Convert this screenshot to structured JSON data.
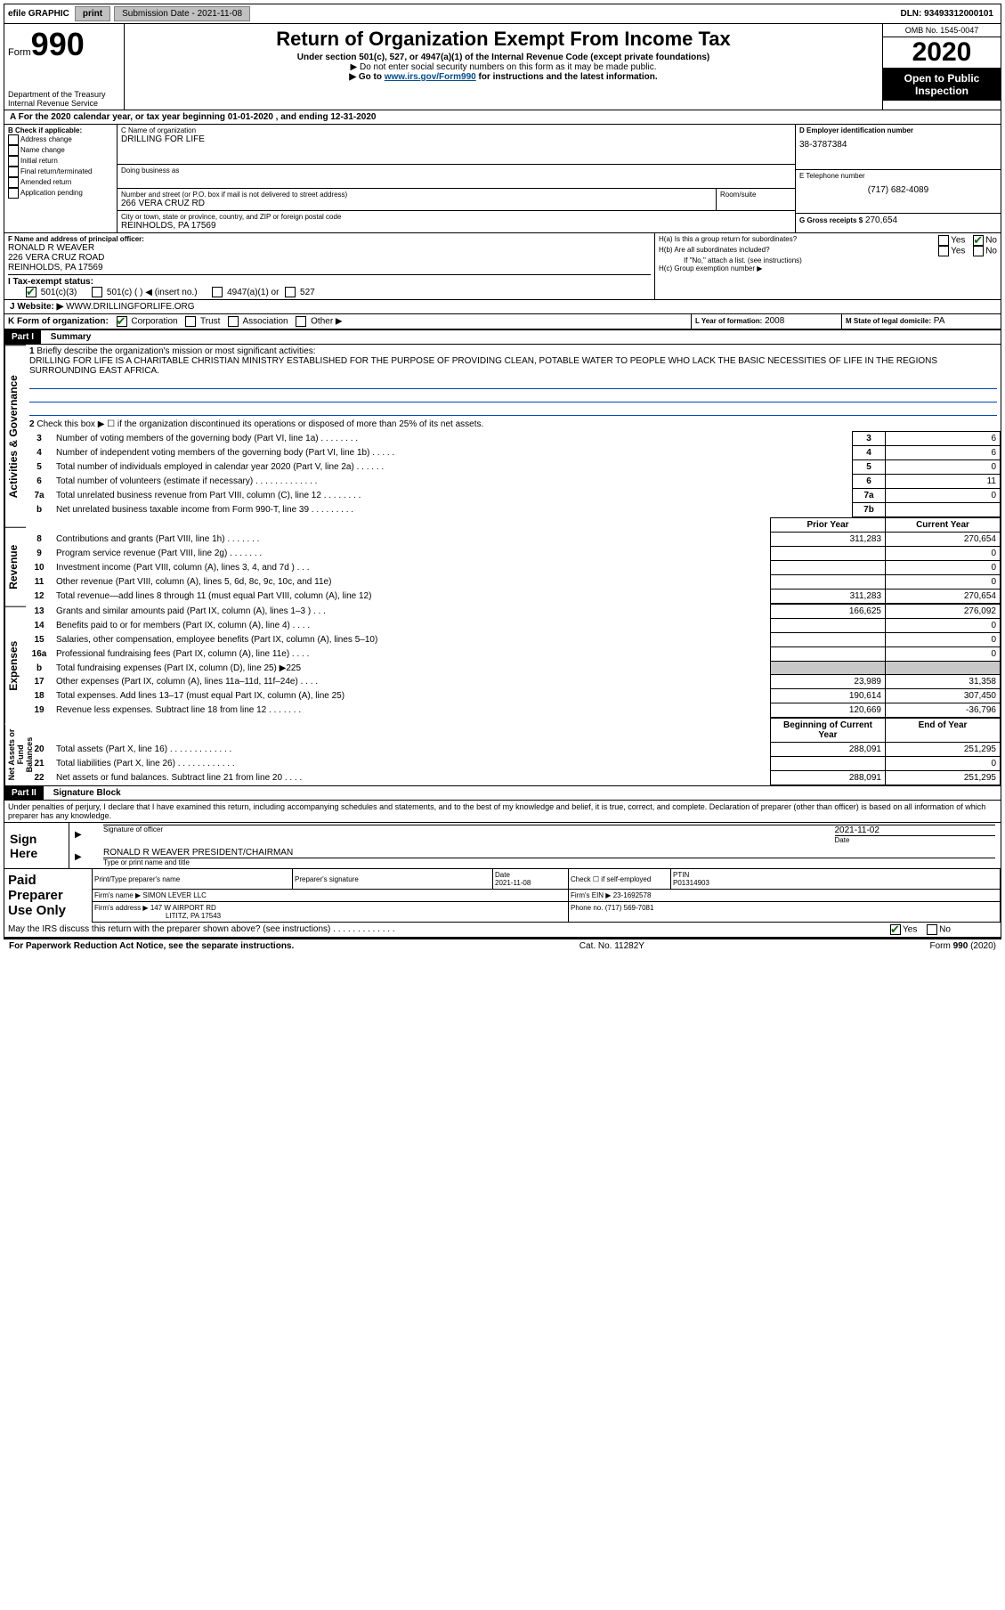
{
  "top_bar": {
    "efile_label": "efile GRAPHIC",
    "print_btn": "print",
    "submission_label": "Submission Date - 2021-11-08",
    "dln": "DLN: 93493312000101"
  },
  "header": {
    "form_word": "Form",
    "form_num": "990",
    "dept": "Department of the Treasury",
    "irs": "Internal Revenue Service",
    "title": "Return of Organization Exempt From Income Tax",
    "sub": "Under section 501(c), 527, or 4947(a)(1) of the Internal Revenue Code (except private foundations)",
    "note1": "▶ Do not enter social security numbers on this form as it may be made public.",
    "note2_pre": "▶ Go to ",
    "note2_link": "www.irs.gov/Form990",
    "note2_post": " for instructions and the latest information.",
    "omb": "OMB No. 1545-0047",
    "year": "2020",
    "public": "Open to Public Inspection"
  },
  "line_a": "For the 2020 calendar year, or tax year beginning 01-01-2020   , and ending 12-31-2020",
  "box_b": {
    "title": "B Check if applicable:",
    "items": [
      "Address change",
      "Name change",
      "Initial return",
      "Final return/terminated",
      "Amended return",
      "Application pending"
    ]
  },
  "box_c": {
    "label_name": "C Name of organization",
    "org_name": "DRILLING FOR LIFE",
    "dba_label": "Doing business as",
    "addr_label": "Number and street (or P.O. box if mail is not delivered to street address)",
    "room_label": "Room/suite",
    "addr": "266 VERA CRUZ RD",
    "city_label": "City or town, state or province, country, and ZIP or foreign postal code",
    "city": "REINHOLDS, PA  17569"
  },
  "box_d": {
    "label": "D Employer identification number",
    "value": "38-3787384"
  },
  "box_e": {
    "label": "E Telephone number",
    "value": "(717) 682-4089"
  },
  "box_g": {
    "label": "G Gross receipts $",
    "value": "270,654"
  },
  "box_f": {
    "label": "F  Name and address of principal officer:",
    "name": "RONALD R WEAVER",
    "addr1": "226 VERA CRUZ ROAD",
    "addr2": "REINHOLDS, PA  17569"
  },
  "box_h": {
    "ha": "H(a)  Is this a group return for subordinates?",
    "hb": "H(b)  Are all subordinates included?",
    "hb_note": "If \"No,\" attach a list. (see instructions)",
    "hc": "H(c)  Group exemption number ▶",
    "yes": "Yes",
    "no": "No"
  },
  "box_i": {
    "label": "I  Tax-exempt status:",
    "c3": "501(c)(3)",
    "c": "501(c) (   ) ◀ (insert no.)",
    "a1": "4947(a)(1) or",
    "five27": "527"
  },
  "box_j": {
    "label": "J   Website: ▶",
    "value": "WWW.DRILLINGFORLIFE.ORG"
  },
  "box_k": {
    "label": "K Form of organization:",
    "corp": "Corporation",
    "trust": "Trust",
    "assoc": "Association",
    "other": "Other ▶"
  },
  "box_l": {
    "label": "L Year of formation:",
    "value": "2008"
  },
  "box_m": {
    "label": "M State of legal domicile:",
    "value": "PA"
  },
  "part1": {
    "header": "Part I",
    "title": "Summary",
    "q1": "Briefly describe the organization's mission or most significant activities:",
    "mission": "DRILLING FOR LIFE IS A CHARITABLE CHRISTIAN MINISTRY ESTABLISHED FOR THE PURPOSE OF PROVIDING CLEAN, POTABLE WATER TO PEOPLE WHO LACK THE BASIC NECESSITIES OF LIFE IN THE REGIONS SURROUNDING EAST AFRICA.",
    "q2": "Check this box ▶ ☐ if the organization discontinued its operations or disposed of more than 25% of its net assets.",
    "rows_ag": [
      {
        "n": "3",
        "label": "Number of voting members of the governing body (Part VI, line 1a)   .    .    .    .    .    .    .    .",
        "box": "3",
        "val": "6"
      },
      {
        "n": "4",
        "label": "Number of independent voting members of the governing body (Part VI, line 1b)   .    .    .    .    .",
        "box": "4",
        "val": "6"
      },
      {
        "n": "5",
        "label": "Total number of individuals employed in calendar year 2020 (Part V, line 2a)   .    .    .    .    .    .",
        "box": "5",
        "val": "0"
      },
      {
        "n": "6",
        "label": "Total number of volunteers (estimate if necessary)   .    .    .    .    .    .    .    .    .    .    .    .    .",
        "box": "6",
        "val": "11"
      },
      {
        "n": "7a",
        "label": "Total unrelated business revenue from Part VIII, column (C), line 12   .    .    .    .    .    .    .    .",
        "box": "7a",
        "val": "0"
      },
      {
        "n": "b",
        "label": "Net unrelated business taxable income from Form 990-T, line 39   .    .    .    .    .    .    .    .    .",
        "box": "7b",
        "val": ""
      }
    ],
    "col_prior": "Prior Year",
    "col_current": "Current Year",
    "revenue_label": "Revenue",
    "rows_rev": [
      {
        "n": "8",
        "label": "Contributions and grants (Part VIII, line 1h)   .    .    .    .    .    .    .",
        "p": "311,283",
        "c": "270,654"
      },
      {
        "n": "9",
        "label": "Program service revenue (Part VIII, line 2g)   .    .    .    .    .    .    .",
        "p": "",
        "c": "0"
      },
      {
        "n": "10",
        "label": "Investment income (Part VIII, column (A), lines 3, 4, and 7d )    .    .    .",
        "p": "",
        "c": "0"
      },
      {
        "n": "11",
        "label": "Other revenue (Part VIII, column (A), lines 5, 6d, 8c, 9c, 10c, and 11e)",
        "p": "",
        "c": "0"
      },
      {
        "n": "12",
        "label": "Total revenue—add lines 8 through 11 (must equal Part VIII, column (A), line 12)",
        "p": "311,283",
        "c": "270,654"
      }
    ],
    "expense_label": "Expenses",
    "rows_exp": [
      {
        "n": "13",
        "label": "Grants and similar amounts paid (Part IX, column (A), lines 1–3 )   .    .    .",
        "p": "166,625",
        "c": "276,092"
      },
      {
        "n": "14",
        "label": "Benefits paid to or for members (Part IX, column (A), line 4)   .    .    .    .",
        "p": "",
        "c": "0"
      },
      {
        "n": "15",
        "label": "Salaries, other compensation, employee benefits (Part IX, column (A), lines 5–10)",
        "p": "",
        "c": "0"
      },
      {
        "n": "16a",
        "label": "Professional fundraising fees (Part IX, column (A), line 11e)   .    .    .    .",
        "p": "",
        "c": "0"
      },
      {
        "n": "b",
        "label": "Total fundraising expenses (Part IX, column (D), line 25) ▶225",
        "p": "shade",
        "c": "shade"
      },
      {
        "n": "17",
        "label": "Other expenses (Part IX, column (A), lines 11a–11d, 11f–24e)   .    .    .    .",
        "p": "23,989",
        "c": "31,358"
      },
      {
        "n": "18",
        "label": "Total expenses. Add lines 13–17 (must equal Part IX, column (A), line 25)",
        "p": "190,614",
        "c": "307,450"
      },
      {
        "n": "19",
        "label": "Revenue less expenses. Subtract line 18 from line 12   .    .    .    .    .    .    .",
        "p": "120,669",
        "c": "-36,796"
      }
    ],
    "net_label": "Net Assets or Fund Balances",
    "col_beg": "Beginning of Current Year",
    "col_end": "End of Year",
    "rows_net": [
      {
        "n": "20",
        "label": "Total assets (Part X, line 16)   .    .    .    .    .    .    .    .    .    .    .    .    .",
        "p": "288,091",
        "c": "251,295"
      },
      {
        "n": "21",
        "label": "Total liabilities (Part X, line 26)   .    .    .    .    .    .    .    .    .    .    .    .",
        "p": "",
        "c": "0"
      },
      {
        "n": "22",
        "label": "Net assets or fund balances. Subtract line 21 from line 20   .    .    .    .",
        "p": "288,091",
        "c": "251,295"
      }
    ]
  },
  "part2": {
    "header": "Part II",
    "title": "Signature Block",
    "decl": "Under penalties of perjury, I declare that I have examined this return, including accompanying schedules and statements, and to the best of my knowledge and belief, it is true, correct, and complete. Declaration of preparer (other than officer) is based on all information of which preparer has any knowledge.",
    "sign_here": "Sign Here",
    "sig_officer": "Signature of officer",
    "sig_date": "2021-11-02",
    "date_label": "Date",
    "officer_name": "RONALD R WEAVER  PRESIDENT/CHAIRMAN",
    "type_label": "Type or print name and title",
    "paid": "Paid Preparer Use Only",
    "prep_name_label": "Print/Type preparer's name",
    "prep_sig_label": "Preparer's signature",
    "prep_date_label": "Date",
    "prep_date": "2021-11-08",
    "self_emp": "Check ☐ if self-employed",
    "ptin_label": "PTIN",
    "ptin": "P01314903",
    "firm_name_label": "Firm's name   ▶",
    "firm_name": "SIMON LEVER LLC",
    "firm_ein_label": "Firm's EIN ▶",
    "firm_ein": "23-1692578",
    "firm_addr_label": "Firm's address ▶",
    "firm_addr1": "147 W AIRPORT RD",
    "firm_addr2": "LITITZ, PA  17543",
    "phone_label": "Phone no.",
    "phone": "(717) 569-7081",
    "discuss": "May the IRS discuss this return with the preparer shown above? (see instructions)   .    .    .    .    .    .    .    .    .    .    .    .    ."
  },
  "footer": {
    "left": "For Paperwork Reduction Act Notice, see the separate instructions.",
    "mid": "Cat. No. 11282Y",
    "right": "Form 990 (2020)"
  }
}
